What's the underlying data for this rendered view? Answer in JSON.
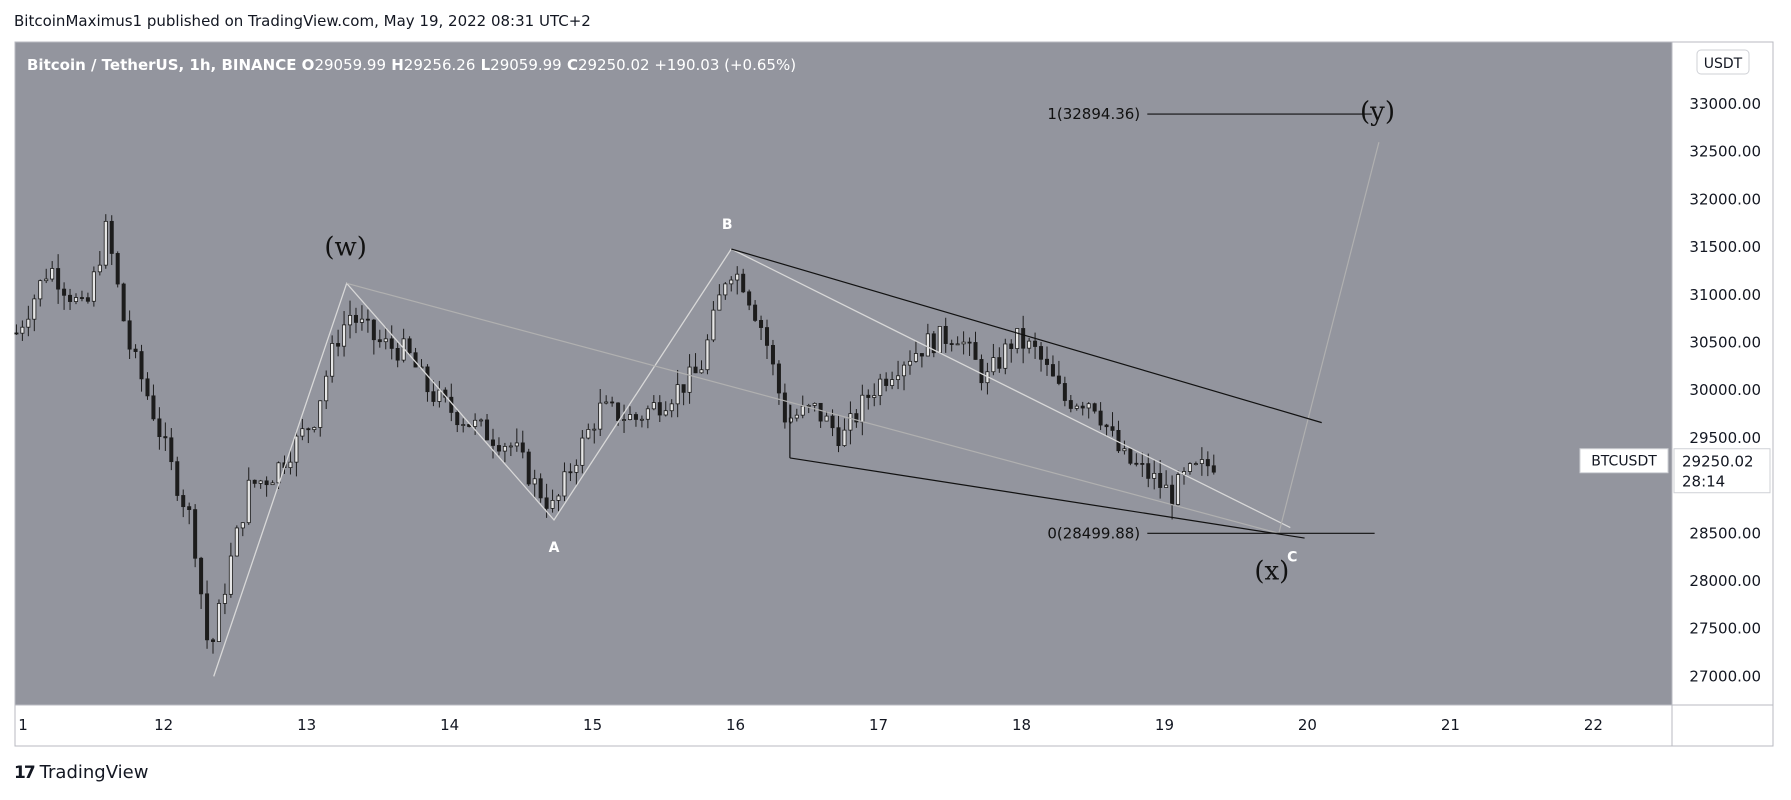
{
  "attribution": "BitcoinMaximus1 published on TradingView.com, May 19, 2022 08:31 UTC+2",
  "brand": {
    "name": "TradingView",
    "logo": "17"
  },
  "header": {
    "symbol": "Bitcoin / TetherUS, 1h, BINANCE",
    "o_label": "O",
    "o": "29059.99",
    "h_label": "H",
    "h": "29256.26",
    "l_label": "L",
    "l": "29059.99",
    "c_label": "C",
    "c": "29250.02",
    "change": "+190.03 (+0.65%)"
  },
  "currency": "USDT",
  "price_tag": {
    "ticker": "BTCUSDT",
    "price": "29250.02",
    "countdown": "28:14"
  },
  "colors": {
    "plot_bg": "#93959e",
    "candle": "#1c1c1c",
    "line_light": "#d8d8d8",
    "line_gray": "#b0b0b0",
    "line_dark": "#111111",
    "axis_bg": "#ffffff"
  },
  "chart_data": {
    "type": "candlestick",
    "x_ticks": [
      "1",
      "12",
      "13",
      "14",
      "15",
      "16",
      "17",
      "18",
      "19",
      "20",
      "21",
      "22"
    ],
    "x_tick_days": [
      11.0,
      12,
      13,
      14,
      15,
      16,
      17,
      18,
      19,
      20,
      21,
      22
    ],
    "y_ticks": [
      "33000.00",
      "32500.00",
      "32000.00",
      "31500.00",
      "31000.00",
      "30500.00",
      "30000.00",
      "29500.00",
      "29000.00",
      "28500.00",
      "28000.00",
      "27500.00",
      "27000.00"
    ],
    "x_range_days": [
      10.96,
      22.55
    ],
    "y_range": [
      26700,
      33650
    ],
    "price_path": [
      [
        10.97,
        30600
      ],
      [
        11.2,
        31300
      ],
      [
        11.45,
        30800
      ],
      [
        11.6,
        31700
      ],
      [
        11.75,
        30500
      ],
      [
        11.9,
        29900
      ],
      [
        12.05,
        29200
      ],
      [
        12.2,
        28600
      ],
      [
        12.32,
        27200
      ],
      [
        12.45,
        28100
      ],
      [
        12.6,
        29000
      ],
      [
        12.75,
        29100
      ],
      [
        12.9,
        29400
      ],
      [
        13.05,
        29700
      ],
      [
        13.2,
        30500
      ],
      [
        13.3,
        30800
      ],
      [
        13.5,
        30500
      ],
      [
        13.7,
        30400
      ],
      [
        13.85,
        30000
      ],
      [
        14.0,
        29800
      ],
      [
        14.2,
        29600
      ],
      [
        14.45,
        29400
      ],
      [
        14.6,
        29000
      ],
      [
        14.73,
        28750
      ],
      [
        14.85,
        29200
      ],
      [
        15.05,
        29800
      ],
      [
        15.3,
        29700
      ],
      [
        15.5,
        29900
      ],
      [
        15.75,
        30200
      ],
      [
        15.95,
        31300
      ],
      [
        16.05,
        31150
      ],
      [
        16.2,
        30600
      ],
      [
        16.35,
        29700
      ],
      [
        16.55,
        29800
      ],
      [
        16.75,
        29500
      ],
      [
        16.95,
        30000
      ],
      [
        17.15,
        30300
      ],
      [
        17.35,
        30500
      ],
      [
        17.55,
        30600
      ],
      [
        17.75,
        30100
      ],
      [
        17.95,
        30550
      ],
      [
        18.1,
        30400
      ],
      [
        18.3,
        29900
      ],
      [
        18.5,
        29900
      ],
      [
        18.7,
        29300
      ],
      [
        18.9,
        29100
      ],
      [
        19.05,
        28900
      ],
      [
        19.15,
        29100
      ],
      [
        19.35,
        29250
      ]
    ],
    "annotations": {
      "w": {
        "label": "(w)",
        "day": 13.28,
        "price": 31120
      },
      "A": {
        "label": "A",
        "day": 14.73,
        "price": 28640
      },
      "B": {
        "label": "B",
        "day": 15.97,
        "price": 31480
      },
      "C": {
        "label": "C",
        "day": 19.88,
        "price": 28560
      },
      "x": {
        "label": "(x)",
        "day": 19.8,
        "price": 28499.88
      },
      "y": {
        "label": "(y)",
        "day": 20.5,
        "price": 32600
      }
    },
    "fib": {
      "level_0": {
        "label": "0(28499.88)",
        "price": 28499.88
      },
      "level_1": {
        "label": "1(32894.36)",
        "price": 32894.36
      }
    }
  }
}
